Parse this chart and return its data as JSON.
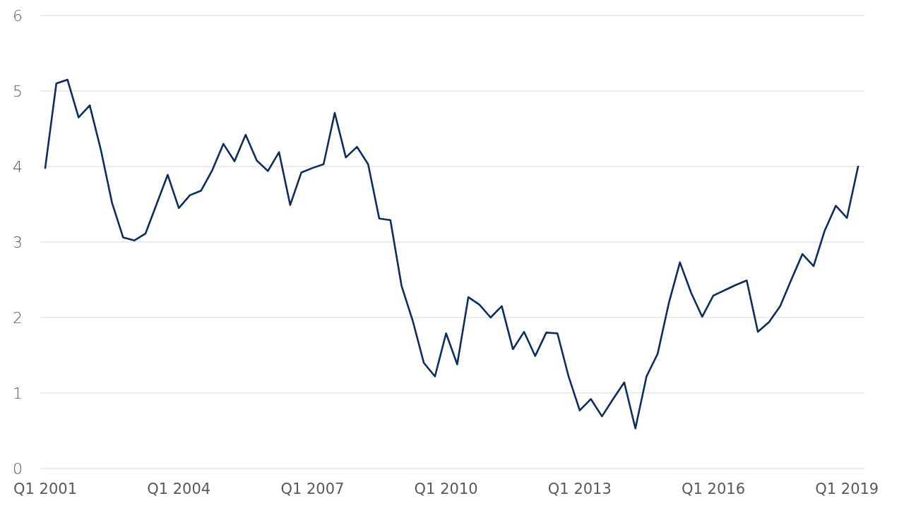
{
  "chart_data": {
    "type": "line",
    "categories": [
      "Q1 2001",
      null,
      null,
      null,
      null,
      null,
      null,
      null,
      null,
      null,
      null,
      null,
      "Q1 2004",
      null,
      null,
      null,
      null,
      null,
      null,
      null,
      null,
      null,
      null,
      null,
      "Q1 2007",
      null,
      null,
      null,
      null,
      null,
      null,
      null,
      null,
      null,
      null,
      null,
      "Q1 2010",
      null,
      null,
      null,
      null,
      null,
      null,
      null,
      null,
      null,
      null,
      null,
      "Q1 2013",
      null,
      null,
      null,
      null,
      null,
      null,
      null,
      null,
      null,
      null,
      null,
      "Q1 2016",
      null,
      null,
      null,
      null,
      null,
      null,
      null,
      null,
      null,
      null,
      null,
      "Q1 2019",
      null
    ],
    "series": [
      {
        "color": "#0c2d5e",
        "values": [
          3.98,
          5.1,
          5.15,
          4.65,
          4.81,
          4.22,
          3.52,
          3.06,
          3.02,
          3.11,
          3.5,
          3.89,
          3.45,
          3.62,
          3.68,
          3.95,
          4.3,
          4.07,
          4.42,
          4.08,
          3.94,
          4.19,
          3.49,
          3.92,
          3.98,
          4.03,
          4.71,
          4.12,
          4.26,
          4.03,
          3.31,
          3.29,
          2.42,
          1.96,
          1.4,
          1.22,
          1.79,
          1.38,
          2.27,
          2.17,
          2.0,
          2.15,
          1.58,
          1.81,
          1.49,
          1.8,
          1.79,
          1.22,
          0.77,
          0.92,
          0.69,
          0.92,
          1.14,
          0.53,
          1.22,
          1.52,
          2.19,
          2.73,
          2.33,
          2.01,
          2.29,
          2.36,
          2.43,
          2.49,
          1.81,
          1.94,
          2.15,
          2.5,
          2.84,
          2.68,
          3.15,
          3.48,
          3.32,
          4.0
        ]
      }
    ],
    "ylim": [
      0,
      6
    ],
    "yticks": [
      0,
      1,
      2,
      3,
      4,
      5,
      6
    ],
    "grid": "y"
  }
}
